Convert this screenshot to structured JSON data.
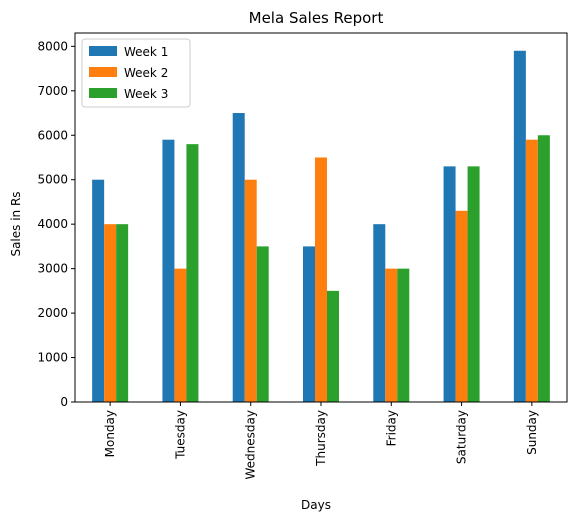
{
  "chart_data": {
    "type": "bar",
    "title": "Mela Sales Report",
    "xlabel": "Days",
    "ylabel": "Sales in Rs",
    "categories": [
      "Monday",
      "Tuesday",
      "Wednesday",
      "Thursday",
      "Friday",
      "Saturday",
      "Sunday"
    ],
    "series": [
      {
        "name": "Week 1",
        "color": "#1f77b4",
        "values": [
          5000,
          5900,
          6500,
          3500,
          4000,
          5300,
          7900
        ]
      },
      {
        "name": "Week 2",
        "color": "#ff7f0e",
        "values": [
          4000,
          3000,
          5000,
          5500,
          3000,
          4300,
          5900
        ]
      },
      {
        "name": "Week 3",
        "color": "#2ca02c",
        "values": [
          4000,
          5800,
          3500,
          2500,
          3000,
          5300,
          6000
        ]
      }
    ],
    "ylim": [
      0,
      8300
    ],
    "yticks": [
      0,
      1000,
      2000,
      3000,
      4000,
      5000,
      6000,
      7000,
      8000
    ],
    "grid": false,
    "legend_position": "top-left"
  }
}
